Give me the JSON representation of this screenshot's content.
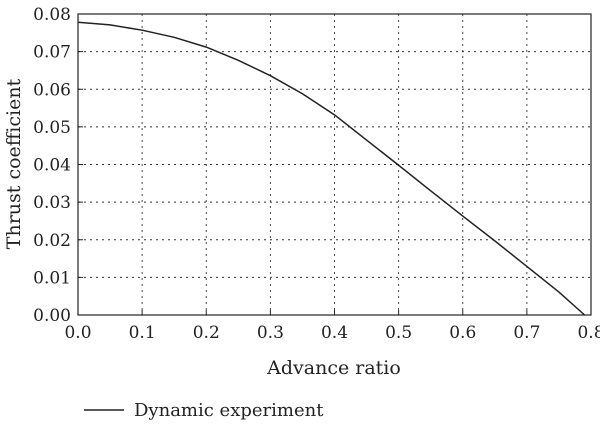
{
  "chart_data": {
    "type": "line",
    "title": "",
    "xlabel": "Advance ratio",
    "ylabel": "Thrust coefficient",
    "xlim": [
      0.0,
      0.8
    ],
    "ylim": [
      0.0,
      0.08
    ],
    "x_ticks": [
      "0.0",
      "0.1",
      "0.2",
      "0.3",
      "0.4",
      "0.5",
      "0.6",
      "0.7",
      "0.8"
    ],
    "y_ticks": [
      "0.00",
      "0.01",
      "0.02",
      "0.03",
      "0.04",
      "0.05",
      "0.06",
      "0.07",
      "0.08"
    ],
    "grid": true,
    "legend_position": "bottom-left",
    "series": [
      {
        "name": "Dynamic experiment",
        "color": "#222222",
        "x": [
          0.0,
          0.05,
          0.1,
          0.15,
          0.2,
          0.25,
          0.3,
          0.35,
          0.4,
          0.45,
          0.5,
          0.55,
          0.6,
          0.65,
          0.7,
          0.75,
          0.79
        ],
        "y": [
          0.0778,
          0.0771,
          0.0757,
          0.0738,
          0.0712,
          0.0677,
          0.0636,
          0.0588,
          0.0532,
          0.0465,
          0.0398,
          0.033,
          0.0263,
          0.0197,
          0.0129,
          0.0061,
          0.0
        ]
      }
    ]
  }
}
